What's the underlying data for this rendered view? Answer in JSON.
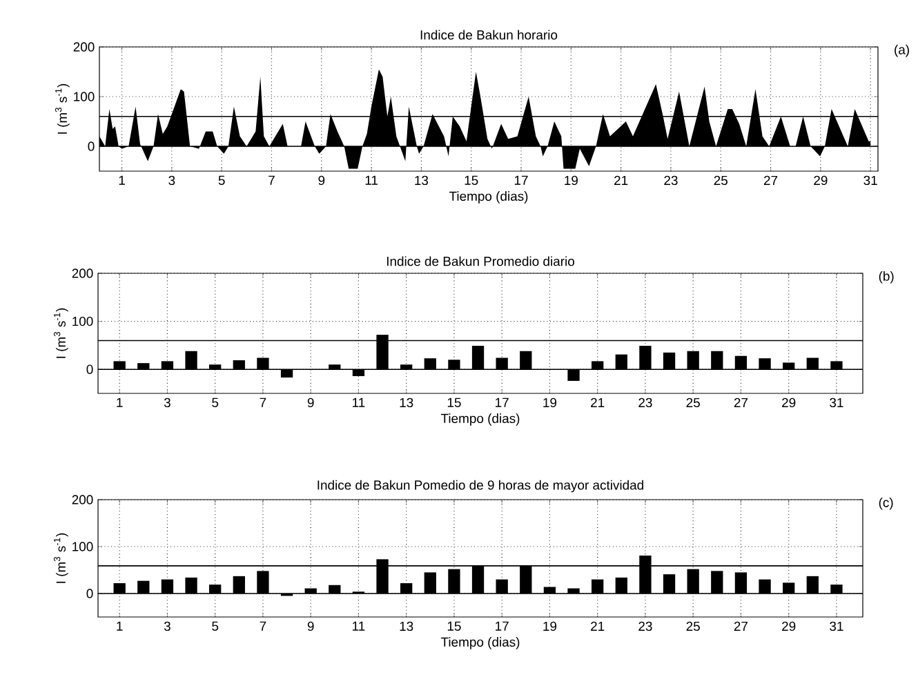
{
  "chart_data": [
    {
      "type": "area",
      "title": "Indice de Bakun horario",
      "xlabel": "Tiempo (dias)",
      "ylabel": "I (m$^{3}$ s$^{-1}$)",
      "color": "#000000",
      "grid": true,
      "x": [
        0.1,
        0.33,
        0.5,
        0.63,
        0.73,
        0.87,
        1.0,
        1.27,
        1.55,
        1.73,
        2.04,
        2.27,
        2.45,
        2.64,
        2.82,
        3.36,
        3.49,
        3.73,
        4.09,
        4.36,
        4.64,
        4.82,
        5.09,
        5.27,
        5.49,
        5.73,
        6.0,
        6.36,
        6.55,
        6.69,
        6.91,
        7.45,
        7.64,
        7.82,
        8.09,
        8.18,
        8.36,
        8.73,
        8.91,
        9.18,
        9.36,
        9.64,
        9.91,
        10.09,
        10.45,
        10.64,
        10.82,
        11.0,
        11.3,
        11.45,
        11.64,
        11.78,
        12.0,
        12.36,
        12.5,
        12.82,
        12.91,
        13.09,
        13.45,
        13.91,
        14.09,
        14.26,
        14.54,
        14.81,
        15.19,
        15.37,
        15.65,
        15.83,
        16.2,
        16.48,
        16.85,
        17.3,
        17.59,
        17.78,
        17.87,
        18.06,
        18.33,
        18.61,
        18.7,
        19.17,
        19.35,
        19.72,
        20.0,
        20.28,
        20.56,
        21.2,
        21.48,
        22.4,
        22.69,
        22.87,
        23.33,
        23.74,
        24.35,
        24.54,
        24.81,
        25.28,
        25.46,
        25.74,
        26.02,
        26.39,
        26.67,
        26.94,
        27.41,
        27.78,
        28.0,
        28.3,
        28.6,
        28.98,
        29.17,
        29.44,
        30.09,
        30.37,
        30.93,
        31.0
      ],
      "values": [
        20,
        0,
        75,
        35,
        40,
        0,
        -5,
        0,
        80,
        5,
        -30,
        0,
        65,
        25,
        40,
        115,
        110,
        0,
        -5,
        30,
        30,
        0,
        -15,
        0,
        80,
        20,
        0,
        30,
        140,
        20,
        0,
        45,
        0,
        null,
        null,
        0,
        50,
        0,
        -15,
        0,
        65,
        30,
        0,
        -45,
        -45,
        0,
        25,
        80,
        155,
        140,
        60,
        100,
        20,
        -30,
        80,
        0,
        -15,
        0,
        65,
        20,
        -20,
        60,
        40,
        10,
        150,
        100,
        15,
        -5,
        45,
        15,
        20,
        100,
        20,
        0,
        -20,
        0,
        50,
        20,
        -45,
        -45,
        -5,
        -40,
        0,
        65,
        20,
        50,
        20,
        125,
        60,
        15,
        110,
        0,
        120,
        50,
        0,
        75,
        75,
        45,
        0,
        115,
        20,
        0,
        60,
        0,
        0,
        60,
        0,
        -20,
        0,
        75,
        0,
        75,
        10,
        10
      ],
      "xlim": [
        0.1,
        31.3
      ],
      "ylim": [
        -50,
        200
      ],
      "xticks": [
        1,
        3,
        5,
        7,
        9,
        11,
        13,
        15,
        17,
        19,
        21,
        23,
        25,
        27,
        29,
        31
      ],
      "yticks": [
        0,
        100,
        200
      ],
      "ref_lines": [
        {
          "axis": "y",
          "value": 0
        },
        {
          "axis": "y",
          "value": 60
        }
      ],
      "annotations": [
        "(a)"
      ]
    },
    {
      "type": "bar",
      "title": "Indice de Bakun Promedio diario",
      "xlabel": "Tiempo (dias)",
      "ylabel": "I (m$^{3}$ s$^{-1}$)",
      "color": "#000000",
      "grid": true,
      "x": [
        1,
        2,
        3,
        4,
        5,
        6,
        7,
        8,
        9,
        10,
        11,
        12,
        13,
        14,
        15,
        16,
        17,
        18,
        19,
        20,
        21,
        22,
        23,
        24,
        25,
        26,
        27,
        28,
        29,
        30,
        31
      ],
      "values": [
        17,
        13,
        17,
        38,
        10,
        19,
        24,
        -17,
        0,
        10,
        -14,
        72,
        10,
        23,
        20,
        49,
        24,
        38,
        0,
        -24,
        17,
        31,
        49,
        35,
        38,
        38,
        28,
        23,
        14,
        24,
        17
      ],
      "xlim": [
        0.1,
        32.1
      ],
      "ylim": [
        -50,
        200
      ],
      "xticks": [
        1,
        3,
        5,
        7,
        9,
        11,
        13,
        15,
        17,
        19,
        21,
        23,
        25,
        27,
        29,
        31
      ],
      "yticks": [
        0,
        100,
        200
      ],
      "ref_lines": [
        {
          "axis": "y",
          "value": 0
        },
        {
          "axis": "y",
          "value": 60
        }
      ],
      "annotations": [
        "(b)"
      ]
    },
    {
      "type": "bar",
      "title": "Indice de Bakun Pomedio de 9 horas de mayor actividad",
      "xlabel": "Tiempo (dias)",
      "ylabel": "I (m$^{3}$ s$^{-1}$)",
      "color": "#000000",
      "grid": true,
      "x": [
        1,
        2,
        3,
        4,
        5,
        6,
        7,
        8,
        9,
        10,
        11,
        12,
        13,
        14,
        15,
        16,
        17,
        18,
        19,
        20,
        21,
        22,
        23,
        24,
        25,
        26,
        27,
        28,
        29,
        30,
        31
      ],
      "values": [
        22,
        27,
        30,
        34,
        19,
        37,
        48,
        -5,
        11,
        18,
        4,
        73,
        22,
        45,
        52,
        59,
        30,
        59,
        14,
        11,
        30,
        34,
        81,
        41,
        52,
        48,
        45,
        30,
        23,
        37,
        19
      ],
      "xlim": [
        0.1,
        32.1
      ],
      "ylim": [
        -50,
        200
      ],
      "xticks": [
        1,
        3,
        5,
        7,
        9,
        11,
        13,
        15,
        17,
        19,
        21,
        23,
        25,
        27,
        29,
        31
      ],
      "yticks": [
        0,
        100,
        200
      ],
      "ref_lines": [
        {
          "axis": "y",
          "value": 0
        },
        {
          "axis": "y",
          "value": 59
        }
      ],
      "annotations": [
        "(c)"
      ]
    }
  ]
}
